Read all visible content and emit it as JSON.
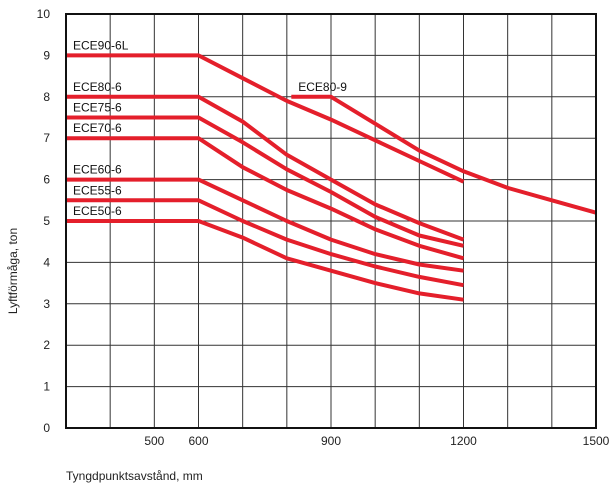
{
  "chart_data": {
    "type": "line",
    "xlabel": "Tyngdpunktsavstånd, mm",
    "ylabel": "Lyftförmåga, ton",
    "xlim": [
      300,
      1500
    ],
    "ylim": [
      0,
      10
    ],
    "x_ticks": [
      500,
      600,
      900,
      1200,
      1500
    ],
    "y_ticks": [
      0,
      1,
      2,
      3,
      4,
      5,
      6,
      7,
      8,
      9,
      10
    ],
    "grid": true,
    "line_color": "#e41f2b",
    "series": [
      {
        "name": "ECE90-6L",
        "label_at": [
          300,
          9.0
        ],
        "points": [
          [
            300,
            9.0
          ],
          [
            600,
            9.0
          ],
          [
            700,
            8.45
          ],
          [
            800,
            7.9
          ],
          [
            900,
            7.45
          ],
          [
            1000,
            6.95
          ],
          [
            1100,
            6.45
          ],
          [
            1200,
            5.95
          ]
        ]
      },
      {
        "name": "ECE80-6",
        "label_at": [
          300,
          8.0
        ],
        "points": [
          [
            300,
            8.0
          ],
          [
            600,
            8.0
          ],
          [
            700,
            7.4
          ],
          [
            800,
            6.6
          ],
          [
            900,
            6.0
          ],
          [
            1000,
            5.4
          ],
          [
            1100,
            4.95
          ],
          [
            1200,
            4.55
          ]
        ]
      },
      {
        "name": "ECE75-6",
        "label_at": [
          300,
          7.5
        ],
        "points": [
          [
            300,
            7.5
          ],
          [
            600,
            7.5
          ],
          [
            700,
            6.9
          ],
          [
            800,
            6.25
          ],
          [
            900,
            5.7
          ],
          [
            1000,
            5.1
          ],
          [
            1100,
            4.65
          ],
          [
            1200,
            4.4
          ]
        ]
      },
      {
        "name": "ECE70-6",
        "label_at": [
          300,
          7.0
        ],
        "points": [
          [
            300,
            7.0
          ],
          [
            600,
            7.0
          ],
          [
            700,
            6.3
          ],
          [
            800,
            5.75
          ],
          [
            900,
            5.3
          ],
          [
            1000,
            4.8
          ],
          [
            1100,
            4.4
          ],
          [
            1200,
            4.1
          ]
        ]
      },
      {
        "name": "ECE60-6",
        "label_at": [
          300,
          6.0
        ],
        "points": [
          [
            300,
            6.0
          ],
          [
            600,
            6.0
          ],
          [
            700,
            5.5
          ],
          [
            800,
            5.0
          ],
          [
            900,
            4.55
          ],
          [
            1000,
            4.2
          ],
          [
            1100,
            3.95
          ],
          [
            1200,
            3.8
          ]
        ]
      },
      {
        "name": "ECE55-6",
        "label_at": [
          300,
          5.5
        ],
        "points": [
          [
            300,
            5.5
          ],
          [
            600,
            5.5
          ],
          [
            700,
            5.0
          ],
          [
            800,
            4.55
          ],
          [
            900,
            4.2
          ],
          [
            1000,
            3.9
          ],
          [
            1100,
            3.65
          ],
          [
            1200,
            3.45
          ]
        ]
      },
      {
        "name": "ECE50-6",
        "label_at": [
          300,
          5.0
        ],
        "points": [
          [
            300,
            5.0
          ],
          [
            600,
            5.0
          ],
          [
            700,
            4.6
          ],
          [
            800,
            4.1
          ],
          [
            900,
            3.8
          ],
          [
            1000,
            3.5
          ],
          [
            1100,
            3.25
          ],
          [
            1200,
            3.1
          ]
        ]
      },
      {
        "name": "ECE80-9",
        "label_at": [
          810,
          8.0
        ],
        "points": [
          [
            810,
            8.0
          ],
          [
            900,
            8.0
          ],
          [
            1000,
            7.35
          ],
          [
            1100,
            6.7
          ],
          [
            1200,
            6.2
          ],
          [
            1300,
            5.8
          ],
          [
            1400,
            5.5
          ],
          [
            1500,
            5.2
          ]
        ]
      }
    ]
  }
}
